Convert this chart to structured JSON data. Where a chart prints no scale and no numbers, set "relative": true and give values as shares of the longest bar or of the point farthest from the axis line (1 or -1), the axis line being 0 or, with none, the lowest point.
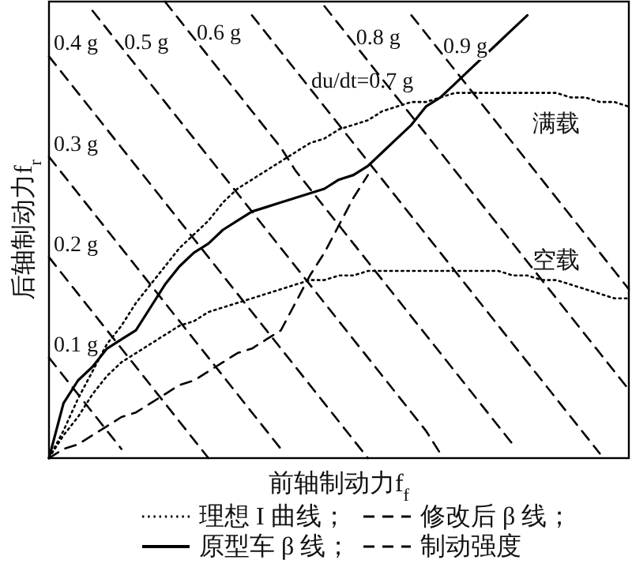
{
  "chart_data": {
    "type": "line",
    "relative": true,
    "xlabel": "前轴制动力f$_{f}$",
    "ylabel": "后轴制动力f$_{r}$",
    "legend": "bottom",
    "annotations": [
      "理想 I 曲线；",
      "制动强度"
    ],
    "categories": [
      null,
      null,
      null,
      null,
      null,
      null,
      null,
      null,
      null,
      null,
      null,
      null,
      null,
      null,
      null,
      null,
      null,
      null,
      null,
      null,
      null,
      null,
      null,
      null,
      null,
      null,
      null,
      null,
      null,
      null,
      null,
      null,
      null,
      null,
      null,
      null,
      null,
      null,
      null,
      null,
      null
    ],
    "series": [
      {
        "name": "满载",
        "color": "#000000",
        "line_style": "dotted",
        "values": [
          0,
          0.06,
          0.13,
          0.19,
          0.25,
          0.29,
          0.34,
          0.38,
          0.42,
          0.46,
          0.49,
          0.52,
          0.56,
          0.59,
          0.61,
          0.63,
          0.65,
          0.67,
          0.69,
          0.7,
          0.72,
          0.73,
          0.74,
          0.76,
          0.77,
          0.78,
          0.78,
          0.79,
          0.8,
          0.8,
          0.8,
          0.8,
          0.8,
          0.8,
          0.8,
          0.8,
          0.79,
          0.79,
          0.78,
          0.78,
          0.77
        ]
      },
      {
        "name": "空载",
        "color": "#000000",
        "line_style": "dotted",
        "values": [
          0,
          0.05,
          0.09,
          0.14,
          0.18,
          0.21,
          0.23,
          0.25,
          0.27,
          0.29,
          0.3,
          0.32,
          0.33,
          0.34,
          0.35,
          0.36,
          0.37,
          0.38,
          0.39,
          0.39,
          0.4,
          0.4,
          0.41,
          0.41,
          0.41,
          0.41,
          0.41,
          0.41,
          0.41,
          0.41,
          0.41,
          0.41,
          0.4,
          0.4,
          0.39,
          0.39,
          0.38,
          0.37,
          0.36,
          0.35,
          0.35
        ]
      },
      {
        "name": "修改后 β 线；",
        "color": "#000000",
        "line_style": "dashed",
        "values": [
          0,
          0.02,
          0.03,
          0.05,
          0.07,
          0.09,
          0.1,
          0.12,
          0.14,
          0.16,
          0.17,
          0.19,
          0.21,
          0.23,
          0.24,
          0.26,
          0.28,
          0.34,
          0.4,
          0.45,
          0.51,
          0.57,
          0.62,
          null,
          null,
          null,
          null,
          null,
          null,
          null,
          null,
          null,
          null,
          null,
          null,
          null,
          null,
          null,
          null,
          null,
          null
        ]
      },
      {
        "name": "原型车 β 线；",
        "color": "#000000",
        "line_style": "solid",
        "values": [
          0,
          0.12,
          0.17,
          0.2,
          0.24,
          0.26,
          0.28,
          0.33,
          0.38,
          0.42,
          0.45,
          0.47,
          0.5,
          0.52,
          0.54,
          0.55,
          0.56,
          0.57,
          0.58,
          0.59,
          0.61,
          0.62,
          0.64,
          0.67,
          0.7,
          0.73,
          0.77,
          0.79,
          0.82,
          0.85,
          0.88,
          0.91,
          0.94,
          0.97,
          null,
          null,
          null,
          null,
          null,
          null,
          null
        ]
      },
      {
        "name": "0.1 g",
        "color": "#000000",
        "line_style": "dashed",
        "values": [
          0.22,
          0.18,
          0.14,
          0.1,
          0.06,
          0.02,
          null,
          null,
          null,
          null,
          null,
          null,
          null,
          null,
          null,
          null,
          null,
          null,
          null,
          null,
          null,
          null,
          null,
          null,
          null,
          null,
          null,
          null,
          null,
          null,
          null,
          null,
          null,
          null,
          null,
          null,
          null,
          null,
          null,
          null,
          null
        ]
      },
      {
        "name": "0.2 g",
        "color": "#000000",
        "line_style": "dashed",
        "values": [
          0.44,
          0.4,
          0.36,
          0.32,
          0.28,
          0.24,
          0.2,
          0.16,
          0.12,
          0.08,
          0.04,
          0,
          null,
          null,
          null,
          null,
          null,
          null,
          null,
          null,
          null,
          null,
          null,
          null,
          null,
          null,
          null,
          null,
          null,
          null,
          null,
          null,
          null,
          null,
          null,
          null,
          null,
          null,
          null,
          null,
          null
        ]
      },
      {
        "name": "0.3 g",
        "color": "#000000",
        "line_style": "dashed",
        "values": [
          0.66,
          0.62,
          0.58,
          0.54,
          0.5,
          0.46,
          0.42,
          0.38,
          0.34,
          0.3,
          0.26,
          0.22,
          0.18,
          0.14,
          0.1,
          0.06,
          0.02,
          null,
          null,
          null,
          null,
          null,
          null,
          null,
          null,
          null,
          null,
          null,
          null,
          null,
          null,
          null,
          null,
          null,
          null,
          null,
          null,
          null,
          null,
          null,
          null
        ]
      },
      {
        "name": "0.4 g",
        "color": "#000000",
        "line_style": "dashed",
        "values": [
          0.88,
          0.84,
          0.8,
          0.76,
          0.72,
          0.68,
          0.64,
          0.6,
          0.56,
          0.52,
          0.48,
          0.44,
          0.4,
          0.36,
          0.32,
          0.28,
          0.24,
          0.2,
          0.16,
          0.12,
          0.08,
          0.04,
          0,
          null,
          null,
          null,
          null,
          null,
          null,
          null,
          null,
          null,
          null,
          null,
          null,
          null,
          null,
          null,
          null,
          null,
          null
        ]
      },
      {
        "name": "0.5 g",
        "color": "#000000",
        "line_style": "dashed",
        "values": [
          null,
          null,
          null,
          0.98,
          0.94,
          0.9,
          0.86,
          0.82,
          0.78,
          0.74,
          0.7,
          0.66,
          0.62,
          0.58,
          0.54,
          0.5,
          0.46,
          0.42,
          0.38,
          0.34,
          0.3,
          0.26,
          0.22,
          0.18,
          0.14,
          0.1,
          0.06,
          0.01,
          null,
          null,
          null,
          null,
          null,
          null,
          null,
          null,
          null,
          null,
          null,
          null,
          null
        ]
      },
      {
        "name": "0.6 g",
        "color": "#000000",
        "line_style": "dashed",
        "values": [
          null,
          null,
          null,
          null,
          null,
          null,
          null,
          null,
          1.0,
          0.96,
          0.92,
          0.88,
          0.84,
          0.8,
          0.76,
          0.72,
          0.68,
          0.63,
          0.59,
          0.55,
          0.51,
          0.47,
          0.43,
          0.39,
          0.35,
          0.31,
          0.27,
          0.23,
          0.19,
          0.15,
          0.11,
          0.07,
          0.03,
          null,
          null,
          null,
          null,
          null,
          null,
          null,
          null
        ]
      },
      {
        "name": "du/dt=0.7 g",
        "color": "#000000",
        "line_style": "dashed",
        "values": [
          null,
          null,
          null,
          null,
          null,
          null,
          null,
          null,
          null,
          null,
          null,
          null,
          null,
          null,
          0.97,
          0.93,
          0.89,
          0.85,
          0.81,
          0.77,
          0.73,
          0.69,
          0.65,
          0.61,
          0.57,
          0.53,
          0.49,
          0.45,
          0.41,
          0.37,
          0.33,
          0.29,
          0.25,
          0.21,
          0.17,
          0.13,
          0.09,
          0.05,
          0.01,
          null,
          null
        ]
      },
      {
        "name": "0.8 g",
        "color": "#000000",
        "line_style": "dashed",
        "values": [
          null,
          null,
          null,
          null,
          null,
          null,
          null,
          null,
          null,
          null,
          null,
          null,
          null,
          null,
          null,
          null,
          null,
          null,
          null,
          0.99,
          0.95,
          0.91,
          0.87,
          0.83,
          0.79,
          0.75,
          0.71,
          0.67,
          0.63,
          0.59,
          0.55,
          0.51,
          0.47,
          0.43,
          0.39,
          0.35,
          0.31,
          0.27,
          0.23,
          0.19,
          0.15
        ]
      },
      {
        "name": "0.9 g",
        "color": "#000000",
        "line_style": "dashed",
        "values": [
          null,
          null,
          null,
          null,
          null,
          null,
          null,
          null,
          null,
          null,
          null,
          null,
          null,
          null,
          null,
          null,
          null,
          null,
          null,
          null,
          null,
          null,
          null,
          null,
          null,
          0.97,
          0.93,
          0.89,
          0.85,
          0.81,
          0.77,
          0.73,
          0.69,
          0.65,
          0.61,
          0.57,
          0.53,
          0.49,
          0.45,
          0.41,
          0.37
        ]
      }
    ]
  }
}
